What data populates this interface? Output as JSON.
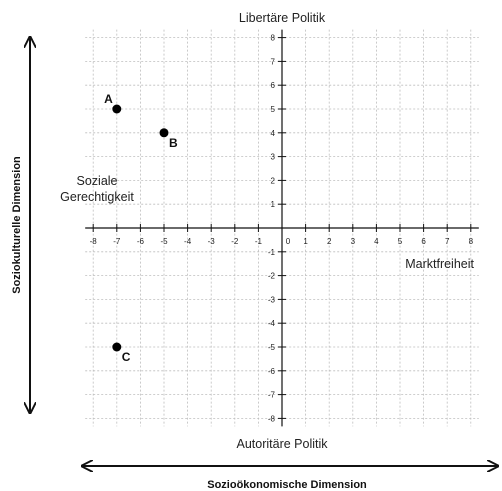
{
  "chart_data": {
    "type": "scatter",
    "xlim": [
      -8,
      8
    ],
    "ylim": [
      -8,
      8
    ],
    "x_ticks": [
      -8,
      -7,
      -6,
      -5,
      -4,
      -3,
      -2,
      -1,
      0,
      1,
      2,
      3,
      4,
      5,
      6,
      7,
      8
    ],
    "y_ticks": [
      -8,
      -7,
      -6,
      -5,
      -4,
      -3,
      -2,
      -1,
      1,
      2,
      3,
      4,
      5,
      6,
      7,
      8
    ],
    "grid": true,
    "points": [
      {
        "label": "A",
        "x": -7,
        "y": 5
      },
      {
        "label": "B",
        "x": -5,
        "y": 4
      },
      {
        "label": "C",
        "x": -7,
        "y": -5
      }
    ],
    "labels": {
      "top": "Libertäre Politik",
      "bottom": "Autoritäre Politik",
      "right": "Marktfreiheit",
      "left_line1": "Soziale",
      "left_line2": "Gerechtigkeit"
    },
    "xlabel": "Sozioökonomische Dimension",
    "ylabel": "Soziokulturelle Dimension"
  }
}
